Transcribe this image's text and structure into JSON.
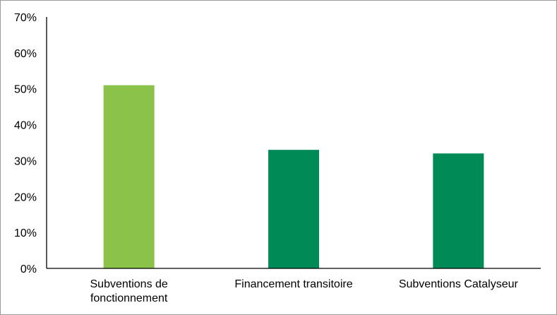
{
  "chart_data": {
    "type": "bar",
    "categories": [
      [
        "Subventions de",
        "fonctionnement"
      ],
      [
        "Financement transitoire"
      ],
      [
        "Subventions Catalyseur"
      ]
    ],
    "values": [
      51,
      33,
      32
    ],
    "ylim": [
      0,
      70
    ],
    "yticks": [
      "0%",
      "10%",
      "20%",
      "30%",
      "40%",
      "50%",
      "60%",
      "70%"
    ],
    "ytick_values": [
      0,
      10,
      20,
      30,
      40,
      50,
      60,
      70
    ],
    "y_unit": "%",
    "title": "",
    "xlabel": "",
    "ylabel": "",
    "grid": false,
    "legend": "none",
    "bar_colors": [
      "#8bc34a",
      "#008a55",
      "#008a55"
    ],
    "axis_color": "#000000"
  }
}
